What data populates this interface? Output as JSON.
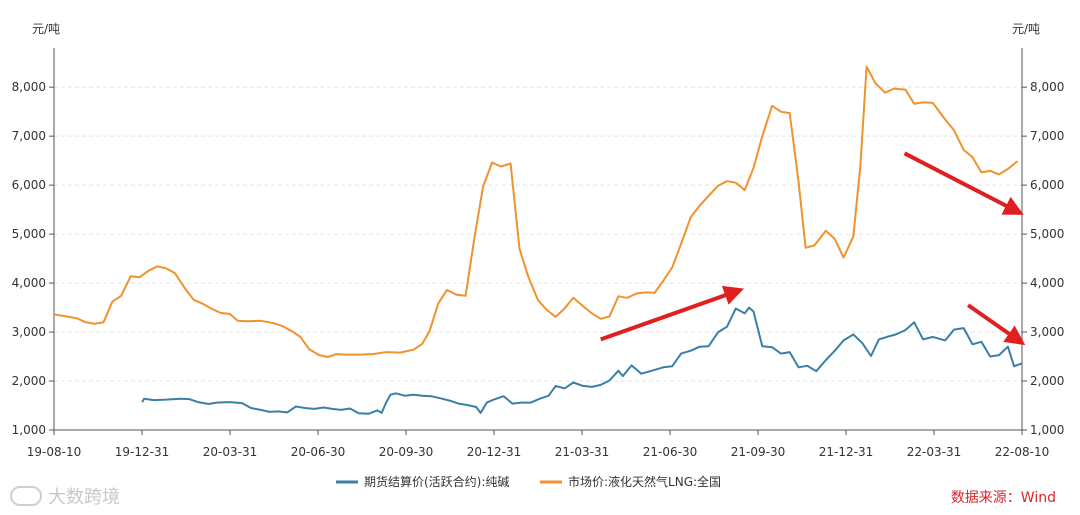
{
  "chart_data": {
    "type": "line",
    "unit_left": "元/吨",
    "unit_right": "元/吨",
    "x_ticks": [
      "19-08-10",
      "19-12-31",
      "20-03-31",
      "20-06-30",
      "20-09-30",
      "20-12-31",
      "21-03-31",
      "21-06-30",
      "21-09-30",
      "21-12-31",
      "22-03-31",
      "22-08-10"
    ],
    "x_range": [
      "2019-08-10",
      "2022-08-10"
    ],
    "ylim": [
      1000,
      8800
    ],
    "y_ticks": [
      1000,
      2000,
      3000,
      4000,
      5000,
      6000,
      7000,
      8000
    ],
    "y_tick_labels": [
      "1,000",
      "2,000",
      "3,000",
      "4,000",
      "5,000",
      "6,000",
      "7,000",
      "8,000"
    ],
    "grid": true,
    "legend_position": "bottom",
    "series": [
      {
        "name": "期货结算价(活跃合约):纯碱",
        "axis": "left",
        "color": "#3a7fa6",
        "points": [
          [
            "2019-11-18",
            1570
          ],
          [
            "2019-11-20",
            1640
          ],
          [
            "2019-12-01",
            1610
          ],
          [
            "2019-12-15",
            1620
          ],
          [
            "2019-12-31",
            1640
          ],
          [
            "2020-01-10",
            1630
          ],
          [
            "2020-01-20",
            1570
          ],
          [
            "2020-02-01",
            1530
          ],
          [
            "2020-02-10",
            1560
          ],
          [
            "2020-02-25",
            1570
          ],
          [
            "2020-03-10",
            1550
          ],
          [
            "2020-03-20",
            1450
          ],
          [
            "2020-03-31",
            1410
          ],
          [
            "2020-04-10",
            1370
          ],
          [
            "2020-04-20",
            1380
          ],
          [
            "2020-04-30",
            1360
          ],
          [
            "2020-05-10",
            1480
          ],
          [
            "2020-05-20",
            1450
          ],
          [
            "2020-05-31",
            1430
          ],
          [
            "2020-06-10",
            1460
          ],
          [
            "2020-06-20",
            1430
          ],
          [
            "2020-06-30",
            1410
          ],
          [
            "2020-07-10",
            1440
          ],
          [
            "2020-07-20",
            1340
          ],
          [
            "2020-07-31",
            1330
          ],
          [
            "2020-08-10",
            1400
          ],
          [
            "2020-08-15",
            1350
          ],
          [
            "2020-08-20",
            1560
          ],
          [
            "2020-08-25",
            1720
          ],
          [
            "2020-08-31",
            1750
          ],
          [
            "2020-09-10",
            1700
          ],
          [
            "2020-09-20",
            1720
          ],
          [
            "2020-09-30",
            1700
          ],
          [
            "2020-10-10",
            1690
          ],
          [
            "2020-10-20",
            1650
          ],
          [
            "2020-10-31",
            1600
          ],
          [
            "2020-11-10",
            1540
          ],
          [
            "2020-11-20",
            1510
          ],
          [
            "2020-11-30",
            1470
          ],
          [
            "2020-12-05",
            1350
          ],
          [
            "2020-12-12",
            1560
          ],
          [
            "2020-12-20",
            1620
          ],
          [
            "2020-12-31",
            1690
          ],
          [
            "2021-01-10",
            1540
          ],
          [
            "2021-01-20",
            1560
          ],
          [
            "2021-01-31",
            1560
          ],
          [
            "2021-02-10",
            1640
          ],
          [
            "2021-02-20",
            1700
          ],
          [
            "2021-02-28",
            1900
          ],
          [
            "2021-03-10",
            1850
          ],
          [
            "2021-03-20",
            1970
          ],
          [
            "2021-03-31",
            1900
          ],
          [
            "2021-04-10",
            1880
          ],
          [
            "2021-04-20",
            1920
          ],
          [
            "2021-04-30",
            2010
          ],
          [
            "2021-05-10",
            2210
          ],
          [
            "2021-05-15",
            2100
          ],
          [
            "2021-05-25",
            2320
          ],
          [
            "2021-06-05",
            2150
          ],
          [
            "2021-06-15",
            2200
          ],
          [
            "2021-06-30",
            2280
          ],
          [
            "2021-07-10",
            2300
          ],
          [
            "2021-07-20",
            2560
          ],
          [
            "2021-07-31",
            2620
          ],
          [
            "2021-08-10",
            2700
          ],
          [
            "2021-08-20",
            2710
          ],
          [
            "2021-08-31",
            3000
          ],
          [
            "2021-09-10",
            3110
          ],
          [
            "2021-09-20",
            3480
          ],
          [
            "2021-09-30",
            3380
          ],
          [
            "2021-10-05",
            3500
          ],
          [
            "2021-10-10",
            3420
          ],
          [
            "2021-10-20",
            2710
          ],
          [
            "2021-10-31",
            2690
          ],
          [
            "2021-11-10",
            2560
          ],
          [
            "2021-11-20",
            2590
          ],
          [
            "2021-11-30",
            2280
          ],
          [
            "2021-12-10",
            2310
          ],
          [
            "2021-12-20",
            2200
          ],
          [
            "2021-12-31",
            2430
          ],
          [
            "2022-01-10",
            2620
          ],
          [
            "2022-01-20",
            2830
          ],
          [
            "2022-01-31",
            2950
          ],
          [
            "2022-02-10",
            2780
          ],
          [
            "2022-02-20",
            2510
          ],
          [
            "2022-03-01",
            2850
          ],
          [
            "2022-03-10",
            2900
          ],
          [
            "2022-03-20",
            2950
          ],
          [
            "2022-03-31",
            3040
          ],
          [
            "2022-04-10",
            3200
          ],
          [
            "2022-04-20",
            2850
          ],
          [
            "2022-05-01",
            2900
          ],
          [
            "2022-05-15",
            2830
          ],
          [
            "2022-05-25",
            3050
          ],
          [
            "2022-06-05",
            3080
          ],
          [
            "2022-06-15",
            2750
          ],
          [
            "2022-06-25",
            2800
          ],
          [
            "2022-07-05",
            2500
          ],
          [
            "2022-07-15",
            2530
          ],
          [
            "2022-07-25",
            2700
          ],
          [
            "2022-08-01",
            2300
          ],
          [
            "2022-08-10",
            2360
          ]
        ]
      },
      {
        "name": "市场价:液化天然气LNG:全国",
        "axis": "left",
        "color": "#f0922d",
        "points": [
          [
            "2019-08-10",
            3360
          ],
          [
            "2019-08-20",
            3330
          ],
          [
            "2019-09-05",
            3280
          ],
          [
            "2019-09-15",
            3200
          ],
          [
            "2019-09-25",
            3170
          ],
          [
            "2019-10-05",
            3200
          ],
          [
            "2019-10-15",
            3620
          ],
          [
            "2019-10-25",
            3740
          ],
          [
            "2019-11-05",
            4140
          ],
          [
            "2019-11-15",
            4120
          ],
          [
            "2019-11-25",
            4250
          ],
          [
            "2019-12-05",
            4340
          ],
          [
            "2019-12-15",
            4300
          ],
          [
            "2019-12-25",
            4200
          ],
          [
            "2020-01-05",
            3900
          ],
          [
            "2020-01-15",
            3660
          ],
          [
            "2020-01-25",
            3580
          ],
          [
            "2020-02-05",
            3470
          ],
          [
            "2020-02-15",
            3390
          ],
          [
            "2020-02-25",
            3370
          ],
          [
            "2020-03-05",
            3230
          ],
          [
            "2020-03-15",
            3220
          ],
          [
            "2020-03-31",
            3230
          ],
          [
            "2020-04-15",
            3180
          ],
          [
            "2020-04-25",
            3120
          ],
          [
            "2020-05-05",
            3020
          ],
          [
            "2020-05-15",
            2900
          ],
          [
            "2020-05-25",
            2650
          ],
          [
            "2020-06-05",
            2530
          ],
          [
            "2020-06-15",
            2490
          ],
          [
            "2020-06-25",
            2550
          ],
          [
            "2020-07-05",
            2540
          ],
          [
            "2020-07-20",
            2540
          ],
          [
            "2020-08-05",
            2550
          ],
          [
            "2020-08-20",
            2590
          ],
          [
            "2020-09-05",
            2580
          ],
          [
            "2020-09-20",
            2640
          ],
          [
            "2020-09-30",
            2760
          ],
          [
            "2020-10-08",
            3010
          ],
          [
            "2020-10-18",
            3580
          ],
          [
            "2020-10-28",
            3860
          ],
          [
            "2020-11-08",
            3760
          ],
          [
            "2020-11-18",
            3740
          ],
          [
            "2020-11-28",
            4920
          ],
          [
            "2020-12-08",
            5980
          ],
          [
            "2020-12-18",
            6460
          ],
          [
            "2020-12-28",
            6380
          ],
          [
            "2021-01-08",
            6440
          ],
          [
            "2021-01-18",
            4700
          ],
          [
            "2021-01-28",
            4130
          ],
          [
            "2021-02-08",
            3650
          ],
          [
            "2021-02-18",
            3450
          ],
          [
            "2021-02-28",
            3310
          ],
          [
            "2021-03-10",
            3480
          ],
          [
            "2021-03-20",
            3700
          ],
          [
            "2021-03-31",
            3530
          ],
          [
            "2021-04-10",
            3380
          ],
          [
            "2021-04-20",
            3270
          ],
          [
            "2021-04-30",
            3320
          ],
          [
            "2021-05-10",
            3730
          ],
          [
            "2021-05-20",
            3700
          ],
          [
            "2021-05-31",
            3790
          ],
          [
            "2021-06-10",
            3810
          ],
          [
            "2021-06-20",
            3800
          ],
          [
            "2021-06-30",
            4050
          ],
          [
            "2021-07-10",
            4320
          ],
          [
            "2021-07-20",
            4800
          ],
          [
            "2021-07-31",
            5350
          ],
          [
            "2021-08-10",
            5580
          ],
          [
            "2021-08-20",
            5780
          ],
          [
            "2021-08-31",
            5990
          ],
          [
            "2021-09-10",
            6080
          ],
          [
            "2021-09-20",
            6050
          ],
          [
            "2021-09-30",
            5900
          ],
          [
            "2021-10-10",
            6350
          ],
          [
            "2021-10-20",
            7000
          ],
          [
            "2021-10-31",
            7620
          ],
          [
            "2021-11-10",
            7500
          ],
          [
            "2021-11-20",
            7470
          ],
          [
            "2021-11-30",
            6080
          ],
          [
            "2021-12-08",
            4720
          ],
          [
            "2021-12-18",
            4770
          ],
          [
            "2021-12-31",
            5070
          ],
          [
            "2022-01-10",
            4900
          ],
          [
            "2022-01-20",
            4520
          ],
          [
            "2022-01-31",
            4950
          ],
          [
            "2022-02-08",
            6400
          ],
          [
            "2022-02-15",
            8420
          ],
          [
            "2022-02-25",
            8080
          ],
          [
            "2022-03-08",
            7890
          ],
          [
            "2022-03-18",
            7970
          ],
          [
            "2022-03-31",
            7950
          ],
          [
            "2022-04-10",
            7660
          ],
          [
            "2022-04-20",
            7690
          ],
          [
            "2022-05-01",
            7680
          ],
          [
            "2022-05-15",
            7340
          ],
          [
            "2022-05-25",
            7120
          ],
          [
            "2022-06-05",
            6720
          ],
          [
            "2022-06-15",
            6570
          ],
          [
            "2022-06-25",
            6260
          ],
          [
            "2022-07-05",
            6290
          ],
          [
            "2022-07-15",
            6220
          ],
          [
            "2022-07-25",
            6330
          ],
          [
            "2022-08-05",
            6490
          ]
        ]
      }
    ],
    "annotations": [
      {
        "type": "arrow",
        "color": "#e02020",
        "from": [
          "2021-04-20",
          2850
        ],
        "to": [
          "2021-09-25",
          3860
        ]
      },
      {
        "type": "arrow",
        "color": "#e02020",
        "from": [
          "2022-03-30",
          6650
        ],
        "to": [
          "2022-08-08",
          5430
        ]
      },
      {
        "type": "arrow",
        "color": "#e02020",
        "from": [
          "2022-06-10",
          3550
        ],
        "to": [
          "2022-08-10",
          2780
        ]
      }
    ]
  },
  "source_text": "数据来源：Wind",
  "watermark_text": "大数跨境"
}
